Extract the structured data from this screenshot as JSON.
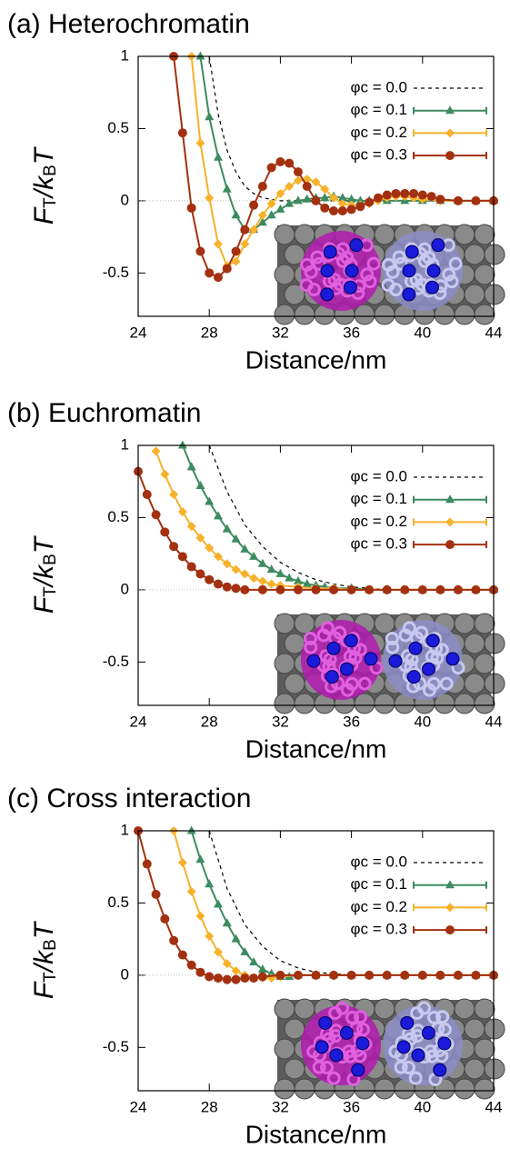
{
  "chart_data": [
    {
      "type": "line",
      "title": "(a) Heterochromatin",
      "xlabel": "Distance/nm",
      "ylabel": [
        "F",
        "T",
        "/k",
        "B",
        "T"
      ],
      "xlim": [
        24,
        44
      ],
      "ylim": [
        -0.8,
        1
      ],
      "xticks": [
        24,
        28,
        32,
        36,
        40,
        44
      ],
      "yticks": [
        -0.5,
        0,
        0.5,
        1
      ],
      "hline": 0,
      "legend": "top-right",
      "series": [
        {
          "name": "φc = 0.0",
          "color": "#000000",
          "marker": "none",
          "dash": true,
          "x": [
            28,
            28.5,
            29,
            29.5,
            30,
            30.5,
            31,
            32,
            33,
            34,
            36,
            38,
            40,
            42,
            44
          ],
          "values": [
            1.0,
            0.6,
            0.35,
            0.2,
            0.1,
            0.05,
            0.02,
            0,
            0,
            0,
            0,
            0,
            0,
            0,
            0
          ]
        },
        {
          "name": "φc = 0.1",
          "color": "#3d8b60",
          "marker": "triangle",
          "dash": false,
          "x": [
            27.5,
            28,
            28.5,
            29,
            29.5,
            30,
            30.5,
            31,
            31.5,
            32,
            32.5,
            33,
            33.5,
            34,
            34.5,
            35,
            35.5,
            36,
            36.5,
            37,
            38,
            39,
            40,
            41,
            42,
            43,
            44
          ],
          "values": [
            1.0,
            0.58,
            0.3,
            0.08,
            -0.1,
            -0.2,
            -0.2,
            -0.15,
            -0.1,
            -0.06,
            -0.02,
            0,
            0.01,
            0.02,
            0.02,
            0.03,
            0.02,
            0.01,
            0,
            0,
            0,
            0,
            0,
            0,
            0,
            0,
            0
          ]
        },
        {
          "name": "φc = 0.2",
          "color": "#f7b12a",
          "marker": "diamond",
          "dash": false,
          "x": [
            27,
            27.5,
            28,
            28.5,
            29,
            29.5,
            30,
            30.5,
            31,
            31.5,
            32,
            32.5,
            33,
            33.5,
            34,
            34.5,
            35,
            35.5,
            36,
            36.5,
            37,
            37.5,
            38,
            38.5,
            39,
            39.5,
            40,
            41,
            42,
            43,
            44
          ],
          "values": [
            1.0,
            0.4,
            0.02,
            -0.3,
            -0.45,
            -0.42,
            -0.3,
            -0.2,
            -0.1,
            -0.02,
            0.05,
            0.1,
            0.14,
            0.15,
            0.13,
            0.08,
            0.02,
            -0.02,
            -0.03,
            -0.03,
            -0.02,
            0,
            0.02,
            0.03,
            0.03,
            0.02,
            0.01,
            0,
            0,
            0,
            0
          ]
        },
        {
          "name": "φc = 0.3",
          "color": "#a3300f",
          "marker": "circle",
          "dash": false,
          "x": [
            26,
            26.5,
            27,
            27.5,
            28,
            28.5,
            29,
            29.5,
            30,
            30.5,
            31,
            31.5,
            32,
            32.5,
            33,
            33.5,
            34,
            34.5,
            35,
            35.5,
            36,
            36.5,
            37,
            37.5,
            38,
            38.5,
            39,
            39.5,
            40,
            40.5,
            41,
            42,
            43,
            44
          ],
          "values": [
            1.0,
            0.47,
            -0.05,
            -0.35,
            -0.5,
            -0.53,
            -0.47,
            -0.35,
            -0.2,
            -0.03,
            0.1,
            0.23,
            0.27,
            0.26,
            0.2,
            0.1,
            0,
            -0.05,
            -0.07,
            -0.07,
            -0.06,
            -0.04,
            -0.01,
            0.02,
            0.04,
            0.05,
            0.05,
            0.05,
            0.04,
            0.03,
            0.01,
            0,
            0,
            0
          ]
        }
      ]
    },
    {
      "type": "line",
      "title": "(b) Euchromatin",
      "xlabel": "Distance/nm",
      "ylabel": [
        "F",
        "T",
        "/k",
        "B",
        "T"
      ],
      "xlim": [
        24,
        44
      ],
      "ylim": [
        -0.8,
        1
      ],
      "xticks": [
        24,
        28,
        32,
        36,
        40,
        44
      ],
      "yticks": [
        -0.5,
        0,
        0.5,
        1
      ],
      "hline": 0,
      "legend": "top-right",
      "series": [
        {
          "name": "φc = 0.0",
          "color": "#000000",
          "marker": "none",
          "dash": true,
          "x": [
            28,
            29,
            30,
            31,
            32,
            33,
            34,
            35,
            36,
            37,
            38,
            40,
            42,
            44
          ],
          "values": [
            1.0,
            0.68,
            0.45,
            0.3,
            0.19,
            0.12,
            0.07,
            0.04,
            0.02,
            0.01,
            0,
            0,
            0,
            0
          ]
        },
        {
          "name": "φc = 0.1",
          "color": "#3d8b60",
          "marker": "triangle",
          "dash": false,
          "x": [
            26.5,
            27,
            27.5,
            28,
            28.5,
            29,
            29.5,
            30,
            30.5,
            31,
            31.5,
            32,
            32.5,
            33,
            33.5,
            34,
            34.5,
            35,
            36,
            37,
            38,
            39,
            40,
            41,
            42,
            43,
            44
          ],
          "values": [
            1.0,
            0.85,
            0.72,
            0.61,
            0.51,
            0.42,
            0.35,
            0.28,
            0.23,
            0.18,
            0.14,
            0.11,
            0.08,
            0.06,
            0.04,
            0.03,
            0.02,
            0.01,
            0.01,
            0,
            0,
            0,
            0,
            0,
            0,
            0,
            0
          ]
        },
        {
          "name": "φc = 0.2",
          "color": "#f7b12a",
          "marker": "diamond",
          "dash": false,
          "x": [
            25,
            25.5,
            26,
            26.5,
            27,
            27.5,
            28,
            28.5,
            29,
            29.5,
            30,
            30.5,
            31,
            31.5,
            32,
            33,
            34,
            35,
            36,
            37,
            38,
            39,
            40,
            41,
            42,
            43,
            44
          ],
          "values": [
            0.96,
            0.8,
            0.66,
            0.54,
            0.44,
            0.36,
            0.29,
            0.23,
            0.18,
            0.14,
            0.11,
            0.08,
            0.06,
            0.04,
            0.03,
            0.02,
            0.01,
            0.01,
            0,
            0,
            0,
            0,
            0,
            0,
            0,
            0,
            0
          ]
        },
        {
          "name": "φc = 0.3",
          "color": "#a3300f",
          "marker": "circle",
          "dash": false,
          "x": [
            24,
            24.5,
            25,
            25.5,
            26,
            26.5,
            27,
            27.5,
            28,
            28.5,
            29,
            29.5,
            30,
            31,
            32,
            33,
            34,
            35,
            36,
            37,
            38,
            39,
            40,
            41,
            42,
            43,
            44
          ],
          "values": [
            0.82,
            0.66,
            0.52,
            0.4,
            0.3,
            0.23,
            0.16,
            0.11,
            0.07,
            0.04,
            0.02,
            0.01,
            0,
            0,
            0,
            0,
            0,
            0,
            0,
            0,
            0,
            0,
            0,
            0,
            0,
            0,
            0
          ]
        }
      ]
    },
    {
      "type": "line",
      "title": "(c) Cross interaction",
      "xlabel": "Distance/nm",
      "ylabel": [
        "F",
        "T",
        "/k",
        "B",
        "T"
      ],
      "xlim": [
        24,
        44
      ],
      "ylim": [
        -0.8,
        1
      ],
      "xticks": [
        24,
        28,
        32,
        36,
        40,
        44
      ],
      "yticks": [
        -0.5,
        0,
        0.5,
        1
      ],
      "hline": 0,
      "legend": "top-right",
      "series": [
        {
          "name": "φc = 0.0",
          "color": "#000000",
          "marker": "none",
          "dash": true,
          "x": [
            28,
            29,
            30,
            31,
            32,
            33,
            34,
            35,
            36,
            38,
            40,
            42,
            44
          ],
          "values": [
            1.0,
            0.6,
            0.35,
            0.2,
            0.1,
            0.05,
            0.02,
            0.01,
            0,
            0,
            0,
            0,
            0
          ]
        },
        {
          "name": "φc = 0.1",
          "color": "#3d8b60",
          "marker": "triangle",
          "dash": false,
          "x": [
            27,
            27.5,
            28,
            28.5,
            29,
            29.5,
            30,
            30.5,
            31,
            31.5,
            32,
            32.5,
            33,
            34,
            35,
            36,
            37,
            38,
            39,
            40,
            41,
            42,
            43,
            44
          ],
          "values": [
            1.0,
            0.8,
            0.63,
            0.49,
            0.36,
            0.25,
            0.16,
            0.09,
            0.04,
            0.01,
            -0.01,
            -0.01,
            0,
            0,
            0,
            0,
            0,
            0,
            0,
            0,
            0,
            0,
            0,
            0
          ]
        },
        {
          "name": "φc = 0.2",
          "color": "#f7b12a",
          "marker": "diamond",
          "dash": false,
          "x": [
            26,
            26.5,
            27,
            27.5,
            28,
            28.5,
            29,
            29.5,
            30,
            30.5,
            31,
            31.5,
            32,
            33,
            34,
            35,
            36,
            37,
            38,
            39,
            40,
            41,
            42,
            43,
            44
          ],
          "values": [
            1.0,
            0.78,
            0.58,
            0.41,
            0.27,
            0.16,
            0.08,
            0.03,
            0,
            -0.02,
            -0.02,
            -0.02,
            -0.01,
            0,
            0,
            0,
            0,
            0,
            0,
            0,
            0,
            0,
            0,
            0,
            0
          ]
        },
        {
          "name": "φc = 0.3",
          "color": "#a3300f",
          "marker": "circle",
          "dash": false,
          "x": [
            24,
            24.5,
            25,
            25.5,
            26,
            26.5,
            27,
            27.5,
            28,
            28.5,
            29,
            29.5,
            30,
            30.5,
            31,
            32,
            33,
            34,
            35,
            36,
            37,
            38,
            39,
            40,
            41,
            42,
            43,
            44
          ],
          "values": [
            1.0,
            0.77,
            0.56,
            0.39,
            0.24,
            0.14,
            0.07,
            0.02,
            -0.01,
            -0.02,
            -0.03,
            -0.03,
            -0.02,
            -0.02,
            -0.01,
            0,
            0,
            0,
            0,
            0,
            0,
            0,
            0,
            0,
            0,
            0,
            0,
            0
          ]
        }
      ]
    }
  ]
}
